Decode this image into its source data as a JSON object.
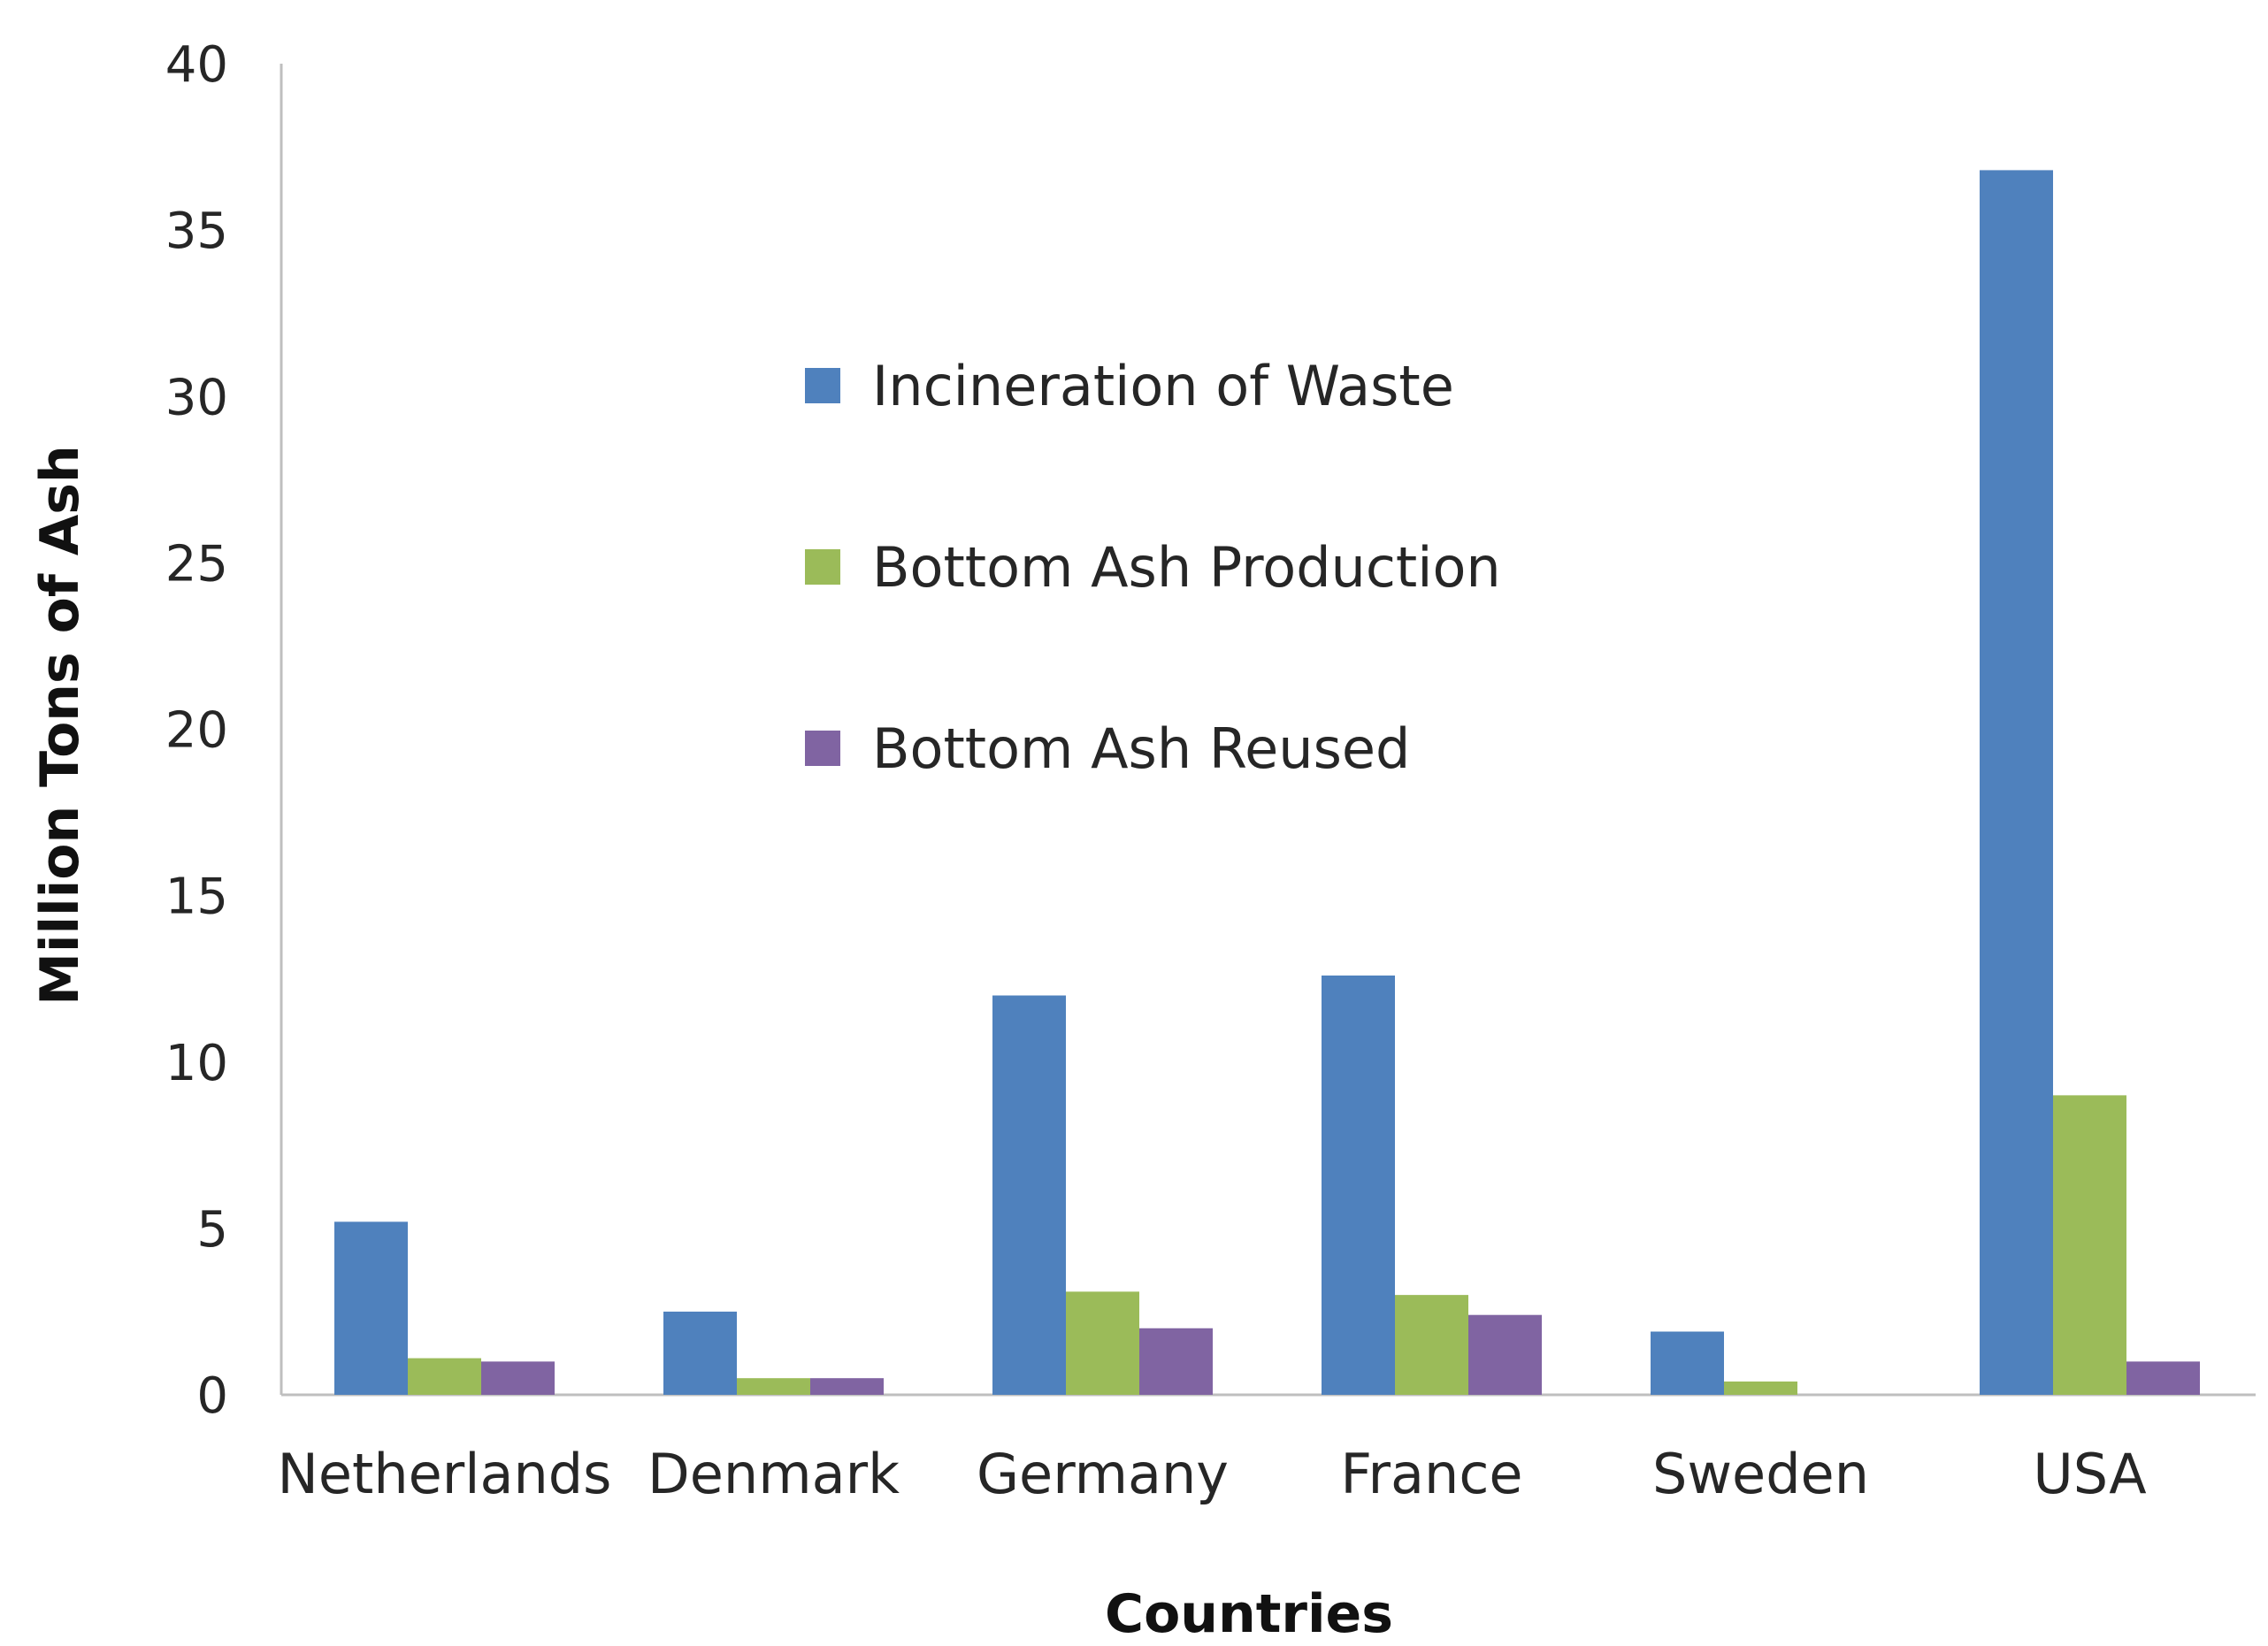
{
  "chart_data": {
    "type": "bar",
    "xlabel": "Countries",
    "ylabel": "Million Tons of Ash",
    "ylim": [
      0,
      40
    ],
    "y_ticks": [
      0,
      5,
      10,
      15,
      20,
      25,
      30,
      35,
      40
    ],
    "grid": false,
    "legend_position": "center",
    "categories": [
      "Netherlands",
      "Denmark",
      "Germany",
      "France",
      "Sweden",
      "USA"
    ],
    "series": [
      {
        "name": "Incineration of Waste",
        "color": "#4F81BD",
        "values": [
          5.2,
          2.5,
          12.0,
          12.6,
          1.9,
          36.8
        ]
      },
      {
        "name": "Bottom Ash Production",
        "color": "#9BBB59",
        "values": [
          1.1,
          0.5,
          3.1,
          3.0,
          0.4,
          9.0
        ]
      },
      {
        "name": "Bottom Ash Reused",
        "color": "#8064A2",
        "values": [
          1.0,
          0.5,
          2.0,
          2.4,
          0,
          1.0
        ]
      }
    ]
  }
}
